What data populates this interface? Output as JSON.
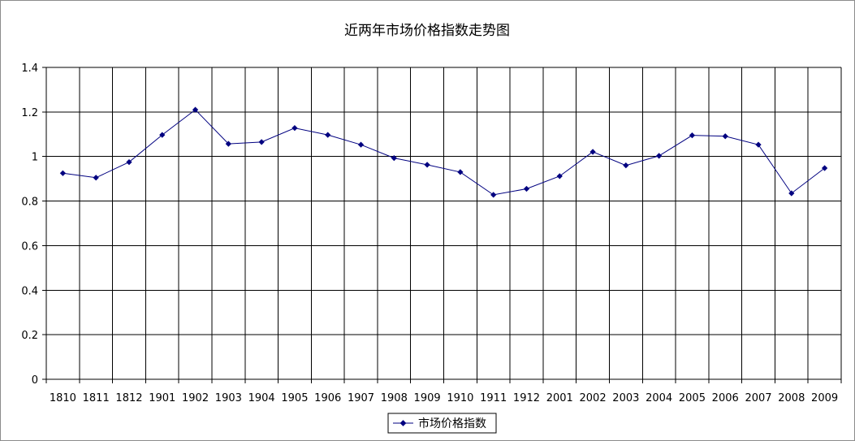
{
  "chart_data": {
    "type": "line",
    "title": "近两年市场价格指数走势图",
    "xlabel": "",
    "ylabel": "",
    "categories": [
      "1810",
      "1811",
      "1812",
      "1901",
      "1902",
      "1903",
      "1904",
      "1905",
      "1906",
      "1907",
      "1908",
      "1909",
      "1910",
      "1911",
      "1912",
      "2001",
      "2002",
      "2003",
      "2004",
      "2005",
      "2006",
      "2007",
      "2008",
      "2009"
    ],
    "ylim": [
      0,
      1.4
    ],
    "yticks": [
      "0",
      "0.2",
      "0.4",
      "0.6",
      "0.8",
      "1",
      "1.2",
      "1.4"
    ],
    "grid": true,
    "legend_position": "bottom",
    "series": [
      {
        "name": "市场价格指数",
        "color": "#000080",
        "marker": "diamond",
        "values": [
          0.925,
          0.905,
          0.975,
          1.097,
          1.21,
          1.057,
          1.065,
          1.128,
          1.097,
          1.053,
          0.993,
          0.963,
          0.93,
          0.828,
          0.855,
          0.912,
          1.021,
          0.96,
          1.003,
          1.095,
          1.091,
          1.053,
          0.835,
          0.948
        ]
      }
    ]
  }
}
